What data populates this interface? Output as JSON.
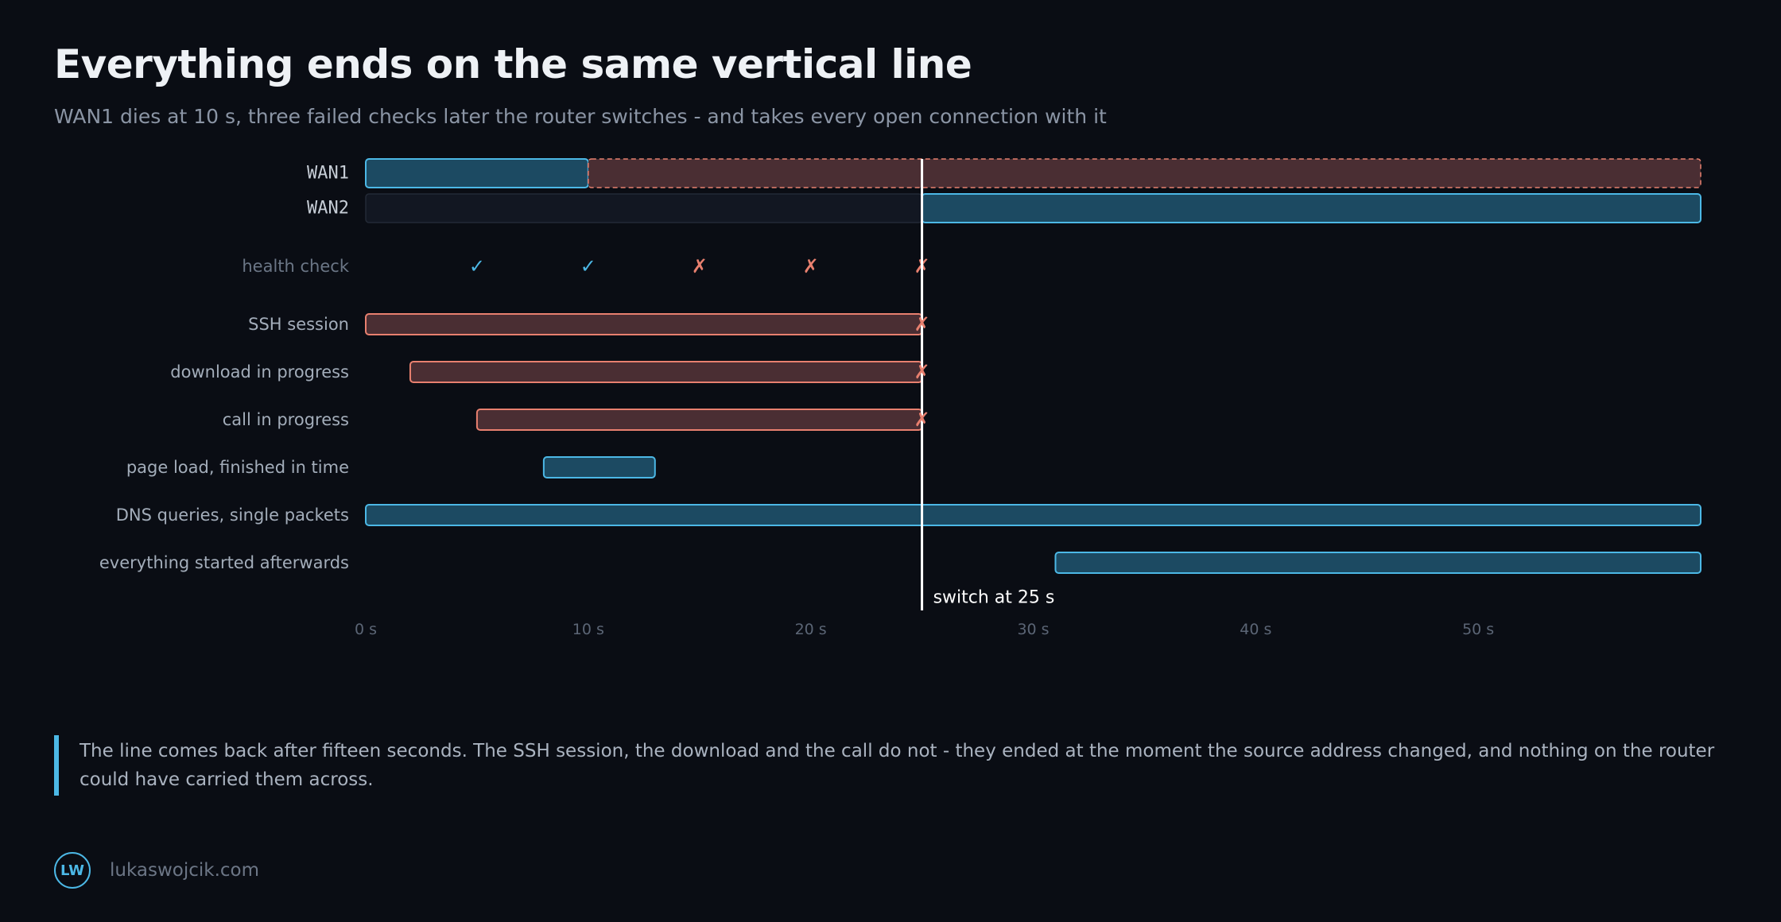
{
  "header": {
    "title": "Everything ends on the same vertical line",
    "subtitle": "WAN1 dies at 10 s, three failed checks later the router switches - and takes every open connection with it"
  },
  "colors": {
    "background": "#0a0d14",
    "ok": "#4cb8e6",
    "ok_fill": "#1c4a62",
    "fail": "#e8806f",
    "fail_fill": "#4a2e33",
    "switch_line": "#ffffff"
  },
  "chart_data": {
    "type": "timeline",
    "title": "Everything ends on the same vertical line",
    "xlim": [
      0,
      60
    ],
    "x_ticks": [
      0,
      10,
      20,
      30,
      40,
      50
    ],
    "x_tick_labels": [
      "0 s",
      "10 s",
      "20 s",
      "30 s",
      "40 s",
      "50 s"
    ],
    "grid": false,
    "switch": {
      "x": 25,
      "label": "switch at 25 s"
    },
    "links": [
      {
        "label": "WAN1",
        "segments": [
          {
            "start": 0,
            "end": 10,
            "state": "up"
          },
          {
            "start": 10,
            "end": 60,
            "state": "down"
          }
        ]
      },
      {
        "label": "WAN2",
        "segments": [
          {
            "start": 0,
            "end": 25,
            "state": "idle"
          },
          {
            "start": 25,
            "end": 60,
            "state": "active"
          }
        ]
      }
    ],
    "health_check": {
      "label": "health check",
      "checks": [
        {
          "t": 5,
          "result": "pass",
          "symbol": "✓"
        },
        {
          "t": 10,
          "result": "pass",
          "symbol": "✓"
        },
        {
          "t": 15,
          "result": "fail",
          "symbol": "✗"
        },
        {
          "t": 20,
          "result": "fail",
          "symbol": "✗"
        },
        {
          "t": 25,
          "result": "fail",
          "symbol": "✗"
        }
      ]
    },
    "flows": [
      {
        "label": "SSH session",
        "start": 0,
        "end": 25,
        "status": "killed"
      },
      {
        "label": "download in progress",
        "start": 2,
        "end": 25,
        "status": "killed"
      },
      {
        "label": "call in progress",
        "start": 5,
        "end": 25,
        "status": "killed"
      },
      {
        "label": "page load, finished in time",
        "start": 8,
        "end": 13,
        "status": "ok"
      },
      {
        "label": "DNS queries, single packets",
        "start": 0,
        "end": 60,
        "status": "ok"
      },
      {
        "label": "everything started afterwards",
        "start": 31,
        "end": 60,
        "status": "ok"
      }
    ],
    "kill_symbol": "✗"
  },
  "note": {
    "text": "The line comes back after fifteen seconds. The SSH session, the download and the call do not - they ended at the moment the source address changed, and nothing on the router could have carried them across."
  },
  "footer": {
    "logo": "LW",
    "site": "lukaswojcik.com"
  }
}
